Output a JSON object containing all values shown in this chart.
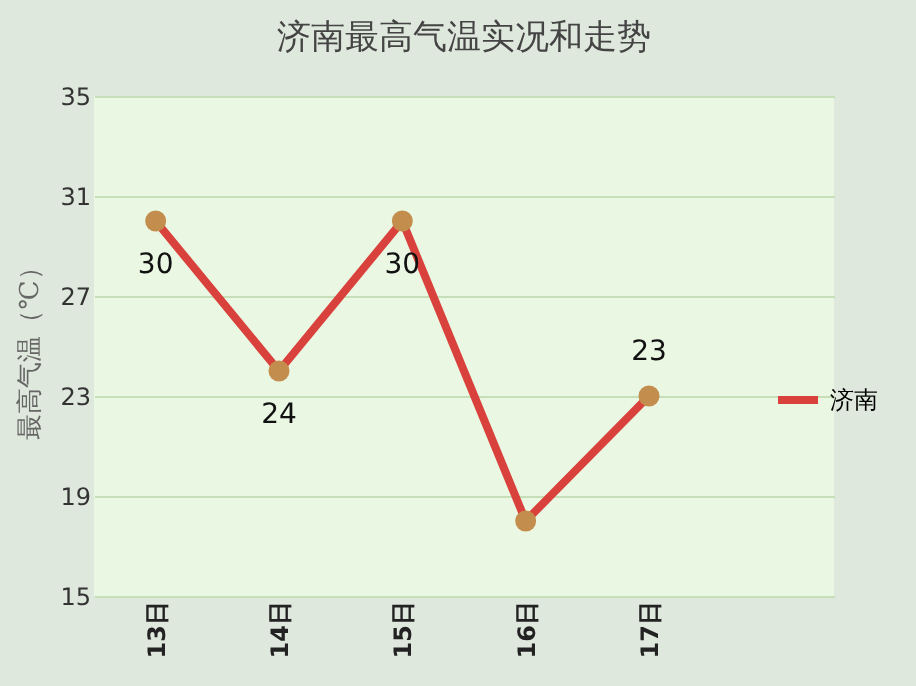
{
  "chart_data": {
    "type": "line",
    "title": "济南最高气温实况和走势",
    "ylabel": "最高气温（℃）",
    "categories": [
      "13日",
      "14日",
      "15日",
      "16日",
      "17日",
      null
    ],
    "series": [
      {
        "name": "济南",
        "color": "#d9423c",
        "values": [
          30,
          24,
          30,
          18,
          23,
          null
        ],
        "value_labels": [
          "30",
          "24",
          "30",
          null,
          "23",
          null
        ]
      }
    ],
    "ylim": [
      15,
      35
    ],
    "yticks": [
      15,
      19,
      23,
      27,
      31,
      35
    ],
    "grid": "y",
    "legend": "right",
    "marker": "circle",
    "line_style": "solid"
  }
}
